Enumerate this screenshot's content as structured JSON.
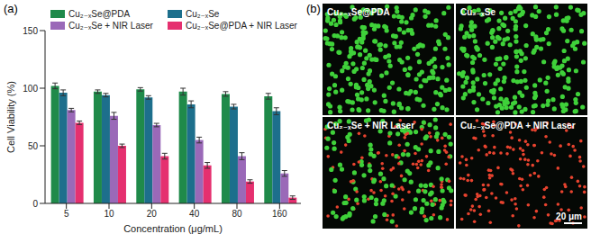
{
  "chart_data": {
    "type": "bar",
    "title": "(a)",
    "x_label": "Concentration (μg/mL)",
    "y_label": "Cell Viability (%)",
    "categories": [
      "5",
      "10",
      "20",
      "40",
      "80",
      "160"
    ],
    "series": [
      {
        "name": "Cu₂₋ₓSe@PDA",
        "color": "#1f8a4a",
        "values": [
          102,
          97,
          99,
          97,
          95,
          93
        ],
        "errors": [
          2.5,
          1.5,
          1.5,
          3,
          2,
          2.5
        ]
      },
      {
        "name": "Cu₂₋ₓSe",
        "color": "#1d6f8c",
        "values": [
          96,
          94,
          92,
          86,
          84,
          80
        ],
        "errors": [
          2.5,
          1.5,
          1.5,
          3,
          2,
          3
        ]
      },
      {
        "name": "Cu₂₋ₓSe + NIR Laser",
        "color": "#9a69b8",
        "values": [
          81,
          76,
          68,
          55,
          41,
          26
        ],
        "errors": [
          1.5,
          3,
          1.5,
          2.5,
          3,
          2.5
        ]
      },
      {
        "name": "Cu₂₋ₓSe@PDA + NIR Laser",
        "color": "#e5306f",
        "values": [
          70,
          50,
          41,
          33,
          19,
          5
        ],
        "errors": [
          1.5,
          1.5,
          2.5,
          2.5,
          1.5,
          1.5
        ]
      }
    ],
    "ylim": [
      0,
      150
    ],
    "yticks": [
      0,
      50,
      100,
      150
    ],
    "grid": false,
    "legend": "top left"
  },
  "image_panel": {
    "title": "(b)",
    "panels": [
      "Cu₂₋ₓSe@PDA",
      "Cu₂₋ₓSe",
      "Cu₂₋ₓSe + NIR Laser",
      "Cu₂₋ₓSe@PDA + NIR Laser"
    ],
    "scale_bar": "20 μm"
  }
}
